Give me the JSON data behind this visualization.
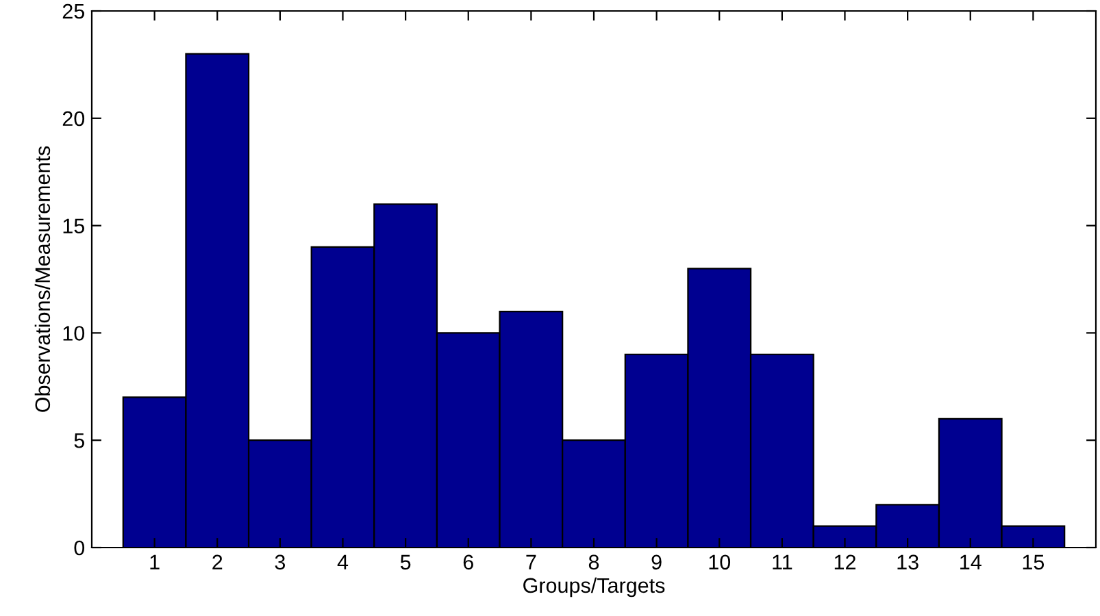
{
  "chart_data": {
    "type": "bar",
    "xlabel": "Groups/Targets",
    "ylabel": "Observations/Measurements",
    "categories": [
      "1",
      "2",
      "3",
      "4",
      "5",
      "6",
      "7",
      "8",
      "9",
      "10",
      "11",
      "12",
      "13",
      "14",
      "15"
    ],
    "values": [
      7,
      23,
      5,
      14,
      16,
      10,
      11,
      5,
      9,
      13,
      9,
      1,
      2,
      6,
      1
    ],
    "color": "#000090",
    "ylim": [
      0,
      25
    ],
    "yticks": [
      0,
      5,
      10,
      15,
      20,
      25
    ],
    "grid": false
  }
}
